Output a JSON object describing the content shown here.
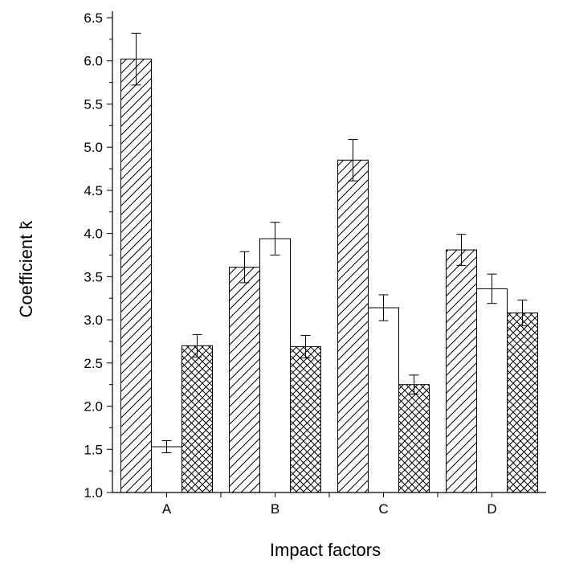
{
  "chart_data": {
    "type": "bar",
    "xlabel": "Impact factors",
    "ylabel": "Coefficient k̄",
    "categories": [
      "A",
      "B",
      "C",
      "D"
    ],
    "ylim": [
      1.0,
      6.5
    ],
    "y_ticks": [
      "1.0",
      "1.5",
      "2.0",
      "2.5",
      "3.0",
      "3.5",
      "4.0",
      "4.5",
      "5.0",
      "5.5",
      "6.0",
      "6.5"
    ],
    "grid": false,
    "series": [
      {
        "pattern": "diagonal-hatch",
        "values": [
          6.02,
          3.61,
          4.85,
          3.81
        ],
        "errors": [
          0.3,
          0.18,
          0.24,
          0.18
        ]
      },
      {
        "pattern": "none",
        "values": [
          1.53,
          3.94,
          3.14,
          3.36
        ],
        "errors": [
          0.07,
          0.19,
          0.15,
          0.17
        ]
      },
      {
        "pattern": "cross-hatch",
        "values": [
          2.7,
          2.69,
          2.25,
          3.08
        ],
        "errors": [
          0.13,
          0.13,
          0.11,
          0.15
        ]
      }
    ],
    "colors": {
      "stroke": "#000000",
      "fill": "#ffffff"
    }
  }
}
